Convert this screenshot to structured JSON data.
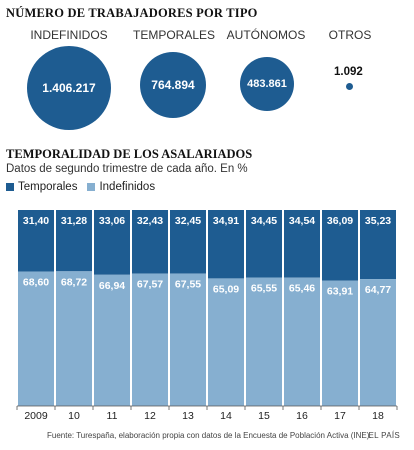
{
  "section1": {
    "title": "NÚMERO DE TRABAJADORES POR TIPO",
    "bubbles": [
      {
        "label": "INDEFINIDOS",
        "value": "1.406.217"
      },
      {
        "label": "TEMPORALES",
        "value": "764.894"
      },
      {
        "label": "AUTÓNOMOS",
        "value": "483.861"
      },
      {
        "label": "OTROS",
        "value": "1.092"
      }
    ]
  },
  "section2": {
    "title": "TEMPORALIDAD DE LOS ASALARIADOS",
    "subtitle": "Datos de segundo trimestre de cada año. En %",
    "legend": [
      {
        "name": "Temporales",
        "color": "#1e5c91"
      },
      {
        "name": "Indefinidos",
        "color": "#86afd0"
      }
    ]
  },
  "chart_data": {
    "type": "bar",
    "stacked": true,
    "categories": [
      "2009",
      "10",
      "11",
      "12",
      "13",
      "14",
      "15",
      "16",
      "17",
      "18"
    ],
    "series": [
      {
        "name": "Temporales",
        "values": [
          31.4,
          31.28,
          33.06,
          32.43,
          32.45,
          34.91,
          34.45,
          34.54,
          36.09,
          35.23
        ],
        "labels": [
          "31,40",
          "31,28",
          "33,06",
          "32,43",
          "32,45",
          "34,91",
          "34,45",
          "34,54",
          "36,09",
          "35,23"
        ]
      },
      {
        "name": "Indefinidos",
        "values": [
          68.6,
          68.72,
          66.94,
          67.57,
          67.55,
          65.09,
          65.55,
          65.46,
          63.91,
          64.77
        ],
        "labels": [
          "68,60",
          "68,72",
          "66,94",
          "67,57",
          "67,55",
          "65,09",
          "65,55",
          "65,46",
          "63,91",
          "64,77"
        ]
      }
    ],
    "ylim": [
      0,
      100
    ],
    "legend_position": "top-left",
    "colors": {
      "temporales": "#1e5c91",
      "indefinidos": "#86afd0"
    }
  },
  "footer": {
    "source": "Fuente: Turespaña, elaboración propia con datos de la Encuesta de Población Activa (INE).",
    "brand": "EL PAÍS"
  }
}
